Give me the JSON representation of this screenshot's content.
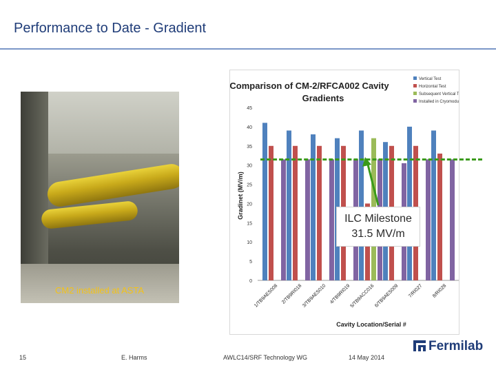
{
  "slide": {
    "title": "Performance to Date - Gradient",
    "photo_caption": "CM2 installed at ASTA",
    "callout_line1": "ILC Milestone",
    "callout_line2": "31.5 MV/m",
    "footer": {
      "page": "15",
      "author": "E. Harms",
      "event": "AWLC14/SRF Technology WG",
      "date": "14 May 2014"
    },
    "logo_text": "Fermilab"
  },
  "colors": {
    "title": "#1f3c78",
    "vertical": "#4f81bd",
    "horizontal": "#c0504d",
    "subsequent": "#9bbb59",
    "cryomodule": "#8064a2",
    "milestone": "#3a9a1a"
  },
  "chart_data": {
    "type": "bar",
    "title": "Comparison of CM-2/RFCA002 Cavity Gradients",
    "xlabel": "Cavity Location/Serial #",
    "ylabel": "Gradinet (MV/m)",
    "ylim": [
      0,
      45
    ],
    "yticks": [
      "0",
      "5",
      "10",
      "15",
      "20",
      "25",
      "30",
      "35",
      "40",
      "45"
    ],
    "categories": [
      "1/TB9AES008",
      "2/TB9RI018",
      "3/TB9AES010",
      "4/TB9RI019",
      "5/TB9ACC016",
      "6/TB9AES009",
      "7/RI027",
      "8/RI028"
    ],
    "series": [
      {
        "name": "Vertical Test",
        "values": [
          41,
          39,
          38,
          37,
          39,
          36,
          40,
          39
        ]
      },
      {
        "name": "Horizontal Test",
        "values": [
          35,
          35,
          35,
          35,
          20,
          35,
          35,
          33
        ]
      },
      {
        "name": "Subsequent Vertical Test",
        "values": [
          null,
          null,
          null,
          null,
          37,
          null,
          null,
          null
        ]
      },
      {
        "name": "Installed in Cryomodule",
        "values": [
          31.5,
          31.5,
          31.5,
          31.5,
          31.5,
          30.5,
          31.5,
          31.5
        ]
      }
    ],
    "legend_position": "top-right",
    "milestone": 31.5
  }
}
